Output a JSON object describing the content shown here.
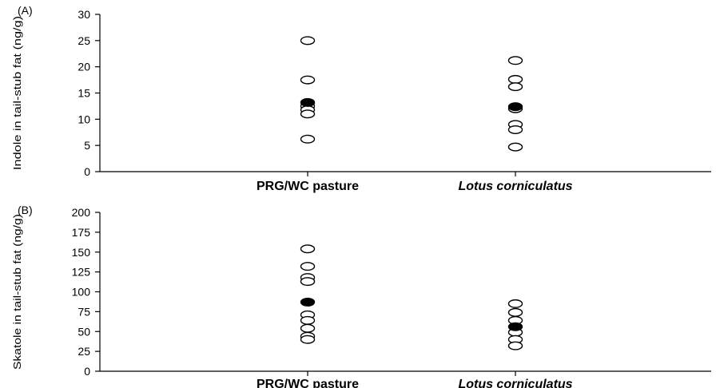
{
  "chart_data": [
    {
      "type": "scatter",
      "panel_label": "(A)",
      "ylabel": "Indole in tail-stub fat (ng/g)",
      "xlabel": "",
      "categories": [
        "PRG/WC pasture",
        "Lotus corniculatus"
      ],
      "ylim": [
        0,
        30
      ],
      "yticks": [
        0,
        5,
        10,
        15,
        20,
        25,
        30
      ],
      "grid": false,
      "series": [
        {
          "marker": "open-circle",
          "points": [
            {
              "category": "PRG/WC pasture",
              "y": 25.0
            },
            {
              "category": "PRG/WC pasture",
              "y": 17.5
            },
            {
              "category": "PRG/WC pasture",
              "y": 12.5
            },
            {
              "category": "PRG/WC pasture",
              "y": 11.8
            },
            {
              "category": "PRG/WC pasture",
              "y": 11.0
            },
            {
              "category": "PRG/WC pasture",
              "y": 6.2
            },
            {
              "category": "Lotus corniculatus",
              "y": 21.2
            },
            {
              "category": "Lotus corniculatus",
              "y": 17.6
            },
            {
              "category": "Lotus corniculatus",
              "y": 16.2
            },
            {
              "category": "Lotus corniculatus",
              "y": 12.0
            },
            {
              "category": "Lotus corniculatus",
              "y": 9.0
            },
            {
              "category": "Lotus corniculatus",
              "y": 8.0
            },
            {
              "category": "Lotus corniculatus",
              "y": 4.7
            }
          ]
        },
        {
          "marker": "filled-circle",
          "points": [
            {
              "category": "PRG/WC pasture",
              "y": 13.2
            },
            {
              "category": "Lotus corniculatus",
              "y": 12.4
            }
          ]
        }
      ]
    },
    {
      "type": "scatter",
      "panel_label": "(B)",
      "ylabel": "Skatole in tail-stub fat (ng/g)",
      "xlabel": "",
      "categories": [
        "PRG/WC pasture",
        "Lotus corniculatus"
      ],
      "ylim": [
        0,
        200
      ],
      "yticks": [
        0,
        25,
        50,
        75,
        100,
        125,
        150,
        175,
        200
      ],
      "grid": false,
      "series": [
        {
          "marker": "open-circle",
          "points": [
            {
              "category": "PRG/WC pasture",
              "y": 154
            },
            {
              "category": "PRG/WC pasture",
              "y": 132
            },
            {
              "category": "PRG/WC pasture",
              "y": 118
            },
            {
              "category": "PRG/WC pasture",
              "y": 113
            },
            {
              "category": "PRG/WC pasture",
              "y": 71
            },
            {
              "category": "PRG/WC pasture",
              "y": 64
            },
            {
              "category": "PRG/WC pasture",
              "y": 54
            },
            {
              "category": "PRG/WC pasture",
              "y": 44
            },
            {
              "category": "PRG/WC pasture",
              "y": 40
            },
            {
              "category": "Lotus corniculatus",
              "y": 85
            },
            {
              "category": "Lotus corniculatus",
              "y": 74
            },
            {
              "category": "Lotus corniculatus",
              "y": 64
            },
            {
              "category": "Lotus corniculatus",
              "y": 49
            },
            {
              "category": "Lotus corniculatus",
              "y": 40
            },
            {
              "category": "Lotus corniculatus",
              "y": 32
            }
          ]
        },
        {
          "marker": "filled-circle",
          "points": [
            {
              "category": "PRG/WC pasture",
              "y": 87
            },
            {
              "category": "Lotus corniculatus",
              "y": 56
            }
          ]
        }
      ]
    }
  ]
}
